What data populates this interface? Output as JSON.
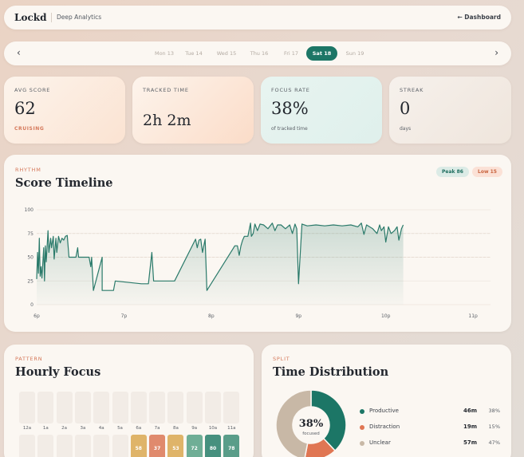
{
  "header": {
    "logo": "Lockd",
    "subtitle": "Deep Analytics",
    "back_link": "← Dashboard"
  },
  "date_nav": {
    "prev": "‹",
    "next": "›",
    "days": [
      {
        "label": "Mon 13",
        "active": false
      },
      {
        "label": "Tue 14",
        "active": false
      },
      {
        "label": "Wed 15",
        "active": false
      },
      {
        "label": "Thu 16",
        "active": false
      },
      {
        "label": "Fri 17",
        "active": false
      },
      {
        "label": "Sat 18",
        "active": true
      },
      {
        "label": "Sun 19",
        "active": false
      }
    ]
  },
  "stats": {
    "avg_score": {
      "label": "AVG SCORE",
      "value": "62",
      "sub": "CRUISING"
    },
    "tracked_time": {
      "label": "TRACKED TIME",
      "value": "2h 2m"
    },
    "focus_rate": {
      "label": "FOCUS RATE",
      "value": "38%",
      "sub": "of tracked time"
    },
    "streak": {
      "label": "STREAK",
      "value": "0",
      "sub": "days"
    }
  },
  "timeline": {
    "tag": "RHYTHM",
    "title": "Score Timeline",
    "peak_label": "Peak 86",
    "low_label": "Low 15"
  },
  "hourly": {
    "tag": "PATTERN",
    "title": "Hourly Focus",
    "row1_labels": [
      "12a",
      "1a",
      "2a",
      "3a",
      "4a",
      "5a",
      "6a",
      "7a",
      "8a",
      "9a",
      "10a",
      "11a"
    ],
    "row2": [
      {
        "value": "",
        "color": ""
      },
      {
        "value": "",
        "color": ""
      },
      {
        "value": "",
        "color": ""
      },
      {
        "value": "",
        "color": ""
      },
      {
        "value": "",
        "color": ""
      },
      {
        "value": "",
        "color": ""
      },
      {
        "value": "58",
        "color": "#dfb469"
      },
      {
        "value": "37",
        "color": "#e08a6d"
      },
      {
        "value": "53",
        "color": "#dfb469"
      },
      {
        "value": "72",
        "color": "#6fae96"
      },
      {
        "value": "80",
        "color": "#46907e"
      },
      {
        "value": "78",
        "color": "#5a9d89"
      }
    ]
  },
  "distribution": {
    "tag": "SPLIT",
    "title": "Time Distribution",
    "center_value": "38%",
    "center_label": "focused",
    "items": [
      {
        "name": "Productive",
        "duration": "46m",
        "percent": "38%",
        "fraction": 0.38,
        "color": "#1c7666"
      },
      {
        "name": "Distraction",
        "duration": "19m",
        "percent": "15%",
        "fraction": 0.15,
        "color": "#e07653"
      },
      {
        "name": "Unclear",
        "duration": "57m",
        "percent": "47%",
        "fraction": 0.47,
        "color": "#c8b8a6"
      }
    ]
  },
  "chart_data": {
    "type": "line",
    "title": "Score Timeline",
    "xlabel": "",
    "ylabel": "",
    "x_ticks": [
      "6p",
      "7p",
      "8p",
      "9p",
      "10p",
      "11p"
    ],
    "y_ticks": [
      0,
      25,
      50,
      75,
      100
    ],
    "ylim": [
      0,
      100
    ],
    "xlim": [
      18.0,
      23.2
    ],
    "grid": true,
    "reference_lines": [
      75,
      50
    ],
    "colors": {
      "line": "#2a7a6a",
      "area": "#2a7a6a"
    },
    "series": [
      {
        "points": [
          [
            18.0,
            27
          ],
          [
            18.01,
            55
          ],
          [
            18.02,
            33
          ],
          [
            18.03,
            70
          ],
          [
            18.04,
            30
          ],
          [
            18.05,
            40
          ],
          [
            18.06,
            28
          ],
          [
            18.08,
            60
          ],
          [
            18.09,
            25
          ],
          [
            18.1,
            62
          ],
          [
            18.11,
            45
          ],
          [
            18.13,
            78
          ],
          [
            18.14,
            55
          ],
          [
            18.16,
            70
          ],
          [
            18.17,
            60
          ],
          [
            18.19,
            72
          ],
          [
            18.2,
            48
          ],
          [
            18.22,
            70
          ],
          [
            18.23,
            55
          ],
          [
            18.25,
            72
          ],
          [
            18.27,
            65
          ],
          [
            18.29,
            70
          ],
          [
            18.31,
            68
          ],
          [
            18.33,
            72
          ],
          [
            18.35,
            73
          ],
          [
            18.37,
            50
          ],
          [
            18.45,
            50
          ],
          [
            18.47,
            60
          ],
          [
            18.48,
            50
          ],
          [
            18.6,
            50
          ],
          [
            18.62,
            40
          ],
          [
            18.63,
            50
          ],
          [
            18.65,
            15
          ],
          [
            18.75,
            50
          ],
          [
            18.75,
            15
          ],
          [
            18.88,
            15
          ],
          [
            18.9,
            25
          ],
          [
            19.2,
            22
          ],
          [
            19.28,
            22
          ],
          [
            19.32,
            55
          ],
          [
            19.34,
            25
          ],
          [
            19.58,
            25
          ],
          [
            19.82,
            69
          ],
          [
            19.84,
            60
          ],
          [
            19.86,
            68
          ],
          [
            19.88,
            69
          ],
          [
            19.9,
            55
          ],
          [
            19.93,
            69
          ],
          [
            19.95,
            15
          ],
          [
            20.25,
            59
          ],
          [
            20.27,
            62
          ],
          [
            20.3,
            62
          ],
          [
            20.32,
            52
          ],
          [
            20.34,
            62
          ],
          [
            20.36,
            68
          ],
          [
            20.38,
            72
          ],
          [
            20.42,
            72
          ],
          [
            20.45,
            86
          ],
          [
            20.46,
            72
          ],
          [
            20.48,
            75
          ],
          [
            20.5,
            85
          ],
          [
            20.53,
            78
          ],
          [
            20.56,
            85
          ],
          [
            20.6,
            84
          ],
          [
            20.65,
            80
          ],
          [
            20.7,
            86
          ],
          [
            20.73,
            78
          ],
          [
            20.76,
            84
          ],
          [
            20.8,
            84
          ],
          [
            20.85,
            80
          ],
          [
            20.9,
            84
          ],
          [
            20.93,
            75
          ],
          [
            20.96,
            85
          ],
          [
            20.98,
            80
          ],
          [
            21.0,
            22
          ],
          [
            21.04,
            85
          ],
          [
            21.1,
            83
          ],
          [
            21.2,
            84
          ],
          [
            21.3,
            83
          ],
          [
            21.4,
            84
          ],
          [
            21.5,
            83
          ],
          [
            21.6,
            84
          ],
          [
            21.68,
            82
          ],
          [
            21.72,
            86
          ],
          [
            21.75,
            74
          ],
          [
            21.78,
            84
          ],
          [
            21.85,
            80
          ],
          [
            21.9,
            75
          ],
          [
            21.93,
            84
          ],
          [
            21.95,
            78
          ],
          [
            21.98,
            82
          ],
          [
            22.0,
            66
          ],
          [
            22.03,
            82
          ],
          [
            22.06,
            75
          ],
          [
            22.1,
            78
          ],
          [
            22.13,
            82
          ],
          [
            22.15,
            68
          ],
          [
            22.18,
            80
          ],
          [
            22.2,
            84
          ]
        ]
      }
    ]
  }
}
